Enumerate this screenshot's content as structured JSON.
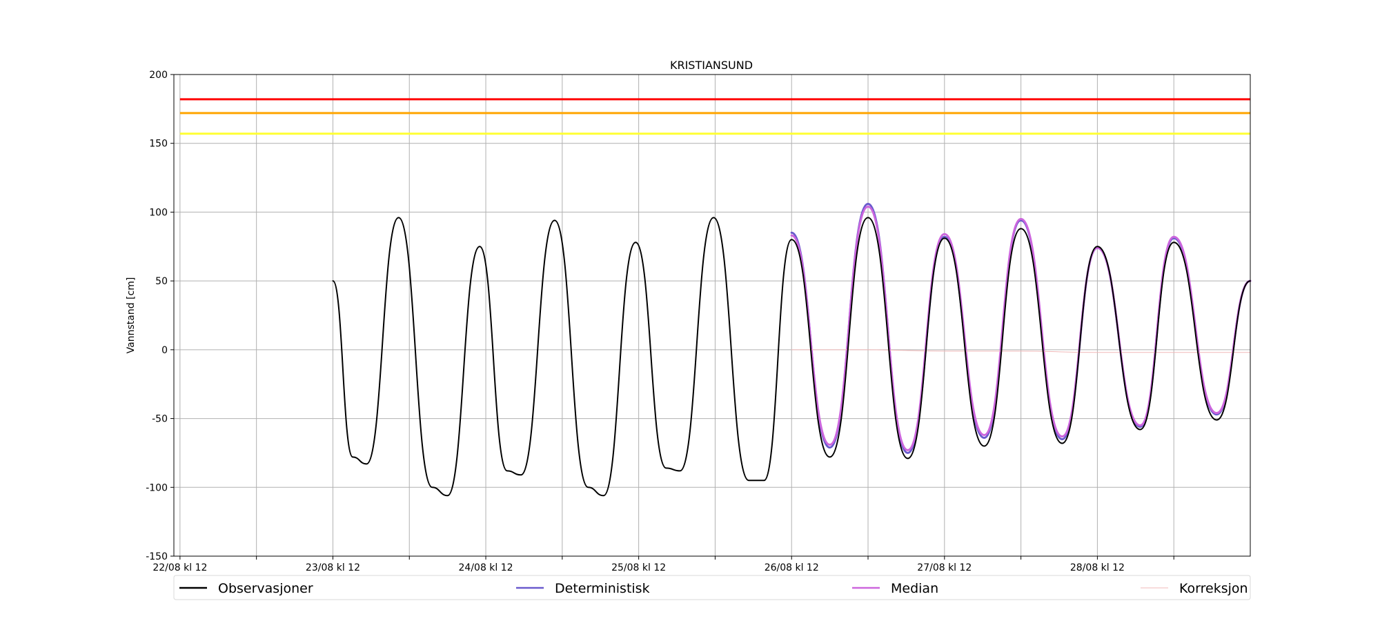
{
  "chart_data": {
    "type": "line",
    "title": "KRISTIANSUND",
    "xlabel": "",
    "ylabel": "Vannstand [cm]",
    "ylim": [
      -150,
      200
    ],
    "yticks": [
      -150,
      -100,
      -50,
      0,
      50,
      100,
      150,
      200
    ],
    "xlim": [
      -0.04,
      7.0
    ],
    "xticks": [
      {
        "x": 0,
        "label": "22/08 kl 12"
      },
      {
        "x": 0.5,
        "label": ""
      },
      {
        "x": 1,
        "label": "23/08 kl 12"
      },
      {
        "x": 1.5,
        "label": ""
      },
      {
        "x": 2,
        "label": "24/08 kl 12"
      },
      {
        "x": 2.5,
        "label": ""
      },
      {
        "x": 3,
        "label": "25/08 kl 12"
      },
      {
        "x": 3.5,
        "label": ""
      },
      {
        "x": 4,
        "label": "26/08 kl 12"
      },
      {
        "x": 4.5,
        "label": ""
      },
      {
        "x": 5,
        "label": "27/08 kl 12"
      },
      {
        "x": 5.5,
        "label": ""
      },
      {
        "x": 6,
        "label": "28/08 kl 12"
      },
      {
        "x": 6.5,
        "label": ""
      }
    ],
    "x_units": "days after 22/08 kl 12",
    "grid": true,
    "thresholds": [
      {
        "level": 182,
        "color": "#ff0000"
      },
      {
        "level": 172,
        "color": "#ffa500"
      },
      {
        "level": 157,
        "color": "#ffff33"
      }
    ],
    "series": [
      {
        "name": "Observasjoner",
        "color": "#000000",
        "x": [
          1.0,
          1.13,
          1.22,
          1.43,
          1.65,
          1.75,
          1.96,
          2.14,
          2.23,
          2.45,
          2.67,
          2.77,
          2.98,
          3.18,
          3.27,
          3.49,
          3.72,
          3.82,
          4.0,
          4.25,
          4.5,
          4.76,
          5.0,
          5.26,
          5.5,
          5.77,
          6.0,
          6.28,
          6.5,
          6.78,
          7.0
        ],
        "y": [
          50,
          -78,
          -83,
          96,
          -100,
          -106,
          75,
          -88,
          -91,
          94,
          -100,
          -106,
          78,
          -86,
          -88,
          96,
          -95,
          -95,
          80,
          -78,
          96,
          -79,
          81,
          -70,
          88,
          -68,
          75,
          -58,
          78,
          -51,
          50
        ]
      },
      {
        "name": "Deterministisk",
        "color": "#6a5acd",
        "x": [
          4.0,
          4.25,
          4.5,
          4.76,
          5.0,
          5.26,
          5.5,
          5.77,
          6.0,
          6.28,
          6.5,
          6.78,
          7.0
        ],
        "y": [
          85,
          -71,
          106,
          -75,
          82,
          -64,
          94,
          -65,
          74,
          -56,
          81,
          -47,
          50
        ]
      },
      {
        "name": "Median",
        "color": "#cc66dd",
        "x": [
          4.0,
          4.25,
          4.5,
          4.76,
          5.0,
          5.26,
          5.5,
          5.77,
          6.0,
          6.28,
          6.5,
          6.78,
          7.0
        ],
        "y": [
          83,
          -69,
          104,
          -73,
          84,
          -62,
          95,
          -63,
          74,
          -55,
          82,
          -46,
          50
        ]
      },
      {
        "name": "Korreksjon",
        "color": "#f0b8b8",
        "x": [
          4.0,
          4.5,
          5.0,
          5.5,
          6.0,
          6.5,
          7.0
        ],
        "y": [
          0,
          0,
          -1,
          -1,
          -2,
          -2,
          -2
        ]
      }
    ],
    "legend": {
      "position": "bottom",
      "entries": [
        "Observasjoner",
        "Deterministisk",
        "Median",
        "Korreksjon"
      ]
    }
  }
}
